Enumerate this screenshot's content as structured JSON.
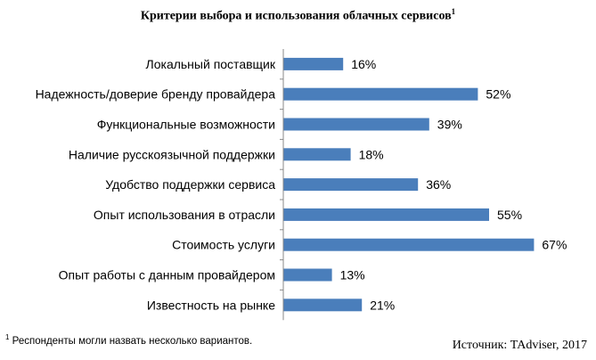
{
  "chart_data": {
    "type": "bar",
    "orientation": "horizontal",
    "title": "Критерии выбора и использования облачных сервисов",
    "title_superscript": "1",
    "categories": [
      "Локальный поставщик",
      "Надежность/доверие бренду провайдера",
      "Функциональные возможности",
      "Наличие русскоязычной поддержки",
      "Удобство поддержки сервиса",
      "Опыт использования в отрасли",
      "Стоимость услуги",
      "Опыт работы с данным провайдером",
      "Известность на рынке"
    ],
    "values": [
      16,
      52,
      39,
      18,
      36,
      55,
      67,
      13,
      21
    ],
    "value_labels": [
      "16%",
      "52%",
      "39%",
      "18%",
      "36%",
      "55%",
      "67%",
      "13%",
      "21%"
    ],
    "unit": "%",
    "xlim": [
      0,
      100
    ],
    "grid": false,
    "legend": "none",
    "bar_color": "#4a7ebb",
    "axis_color": "#888888"
  },
  "footnote": {
    "marker": "1",
    "text": "Респонденты могли назвать несколько вариантов."
  },
  "source": "Источник: TAdviser, 2017"
}
